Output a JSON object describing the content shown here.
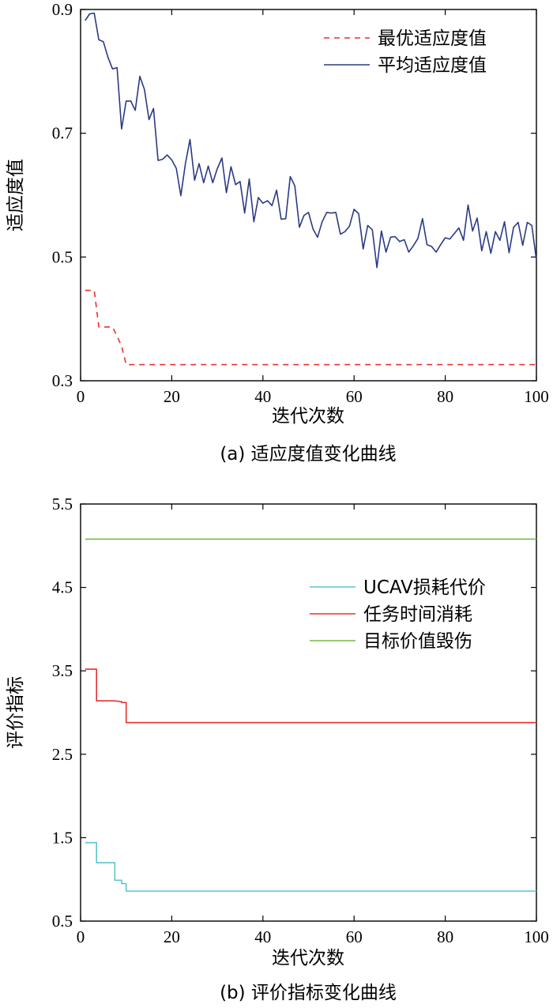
{
  "chart_data": [
    {
      "type": "line",
      "caption": "(a) 适应度值变化曲线",
      "xlabel": "迭代次数",
      "ylabel": "适应度值",
      "xlim": [
        0,
        100
      ],
      "ylim": [
        0.3,
        0.9
      ],
      "xticks": [
        0,
        20,
        40,
        60,
        80,
        100
      ],
      "yticks": [
        0.3,
        0.5,
        0.7,
        0.9
      ],
      "legend_position": "top-right",
      "grid": false,
      "series": [
        {
          "name": "最优适应度值",
          "color": "#e8312f",
          "style": "dashed",
          "x": [
            1,
            3,
            4,
            6,
            7,
            8,
            9,
            10,
            100
          ],
          "y": [
            0.446,
            0.446,
            0.387,
            0.387,
            0.387,
            0.372,
            0.356,
            0.326,
            0.326
          ]
        },
        {
          "name": "平均适应度值",
          "color": "#2b3a84",
          "style": "solid",
          "x": [
            1,
            2,
            3,
            4,
            5,
            6,
            7,
            8,
            9,
            10,
            11,
            12,
            13,
            14,
            15,
            16,
            17,
            18,
            19,
            20,
            21,
            22,
            23,
            24,
            25,
            26,
            27,
            28,
            29,
            30,
            31,
            32,
            33,
            34,
            35,
            36,
            37,
            38,
            39,
            40,
            41,
            42,
            43,
            44,
            45,
            46,
            47,
            48,
            49,
            50,
            51,
            52,
            53,
            54,
            55,
            56,
            57,
            58,
            59,
            60,
            61,
            62,
            63,
            64,
            65,
            66,
            67,
            68,
            69,
            70,
            71,
            72,
            73,
            74,
            75,
            76,
            77,
            78,
            79,
            80,
            81,
            82,
            83,
            84,
            85,
            86,
            87,
            88,
            89,
            90,
            91,
            92,
            93,
            94,
            95,
            96,
            97,
            98,
            99,
            100
          ],
          "y": [
            0.882,
            0.893,
            0.894,
            0.851,
            0.848,
            0.823,
            0.804,
            0.806,
            0.707,
            0.752,
            0.752,
            0.737,
            0.792,
            0.771,
            0.722,
            0.74,
            0.656,
            0.658,
            0.665,
            0.657,
            0.643,
            0.599,
            0.651,
            0.69,
            0.624,
            0.651,
            0.62,
            0.647,
            0.62,
            0.643,
            0.66,
            0.604,
            0.646,
            0.617,
            0.622,
            0.571,
            0.626,
            0.557,
            0.596,
            0.587,
            0.591,
            0.583,
            0.608,
            0.561,
            0.562,
            0.63,
            0.615,
            0.548,
            0.567,
            0.572,
            0.545,
            0.532,
            0.557,
            0.572,
            0.571,
            0.572,
            0.537,
            0.541,
            0.55,
            0.577,
            0.57,
            0.513,
            0.551,
            0.544,
            0.483,
            0.542,
            0.508,
            0.532,
            0.533,
            0.525,
            0.528,
            0.508,
            0.518,
            0.53,
            0.562,
            0.52,
            0.517,
            0.508,
            0.52,
            0.531,
            0.529,
            0.538,
            0.547,
            0.527,
            0.584,
            0.542,
            0.563,
            0.51,
            0.541,
            0.506,
            0.541,
            0.527,
            0.557,
            0.507,
            0.548,
            0.556,
            0.519,
            0.556,
            0.551,
            0.495
          ]
        }
      ]
    },
    {
      "type": "line",
      "caption": "(b) 评价指标变化曲线",
      "xlabel": "迭代次数",
      "ylabel": "评价指标",
      "xlim": [
        0,
        100
      ],
      "ylim": [
        0.5,
        5.5
      ],
      "xticks": [
        0,
        20,
        40,
        60,
        80,
        100
      ],
      "yticks": [
        0.5,
        1.5,
        2.5,
        3.5,
        4.5,
        5.5
      ],
      "legend_position": "top-right",
      "grid": false,
      "series": [
        {
          "name": "UCAV损耗代价",
          "color": "#5bc4cc",
          "style": "solid",
          "x": [
            1,
            3.5,
            3.5,
            7.5,
            7.5,
            9,
            9,
            10,
            10,
            100
          ],
          "y": [
            1.44,
            1.44,
            1.2,
            1.2,
            0.99,
            0.99,
            0.95,
            0.95,
            0.86,
            0.86
          ]
        },
        {
          "name": "任务时间消耗",
          "color": "#e8312f",
          "style": "solid",
          "x": [
            1,
            3.5,
            3.5,
            7.5,
            7.5,
            9,
            9,
            10,
            10,
            100
          ],
          "y": [
            3.52,
            3.52,
            3.14,
            3.14,
            3.14,
            3.13,
            3.12,
            3.12,
            2.88,
            2.88
          ]
        },
        {
          "name": "目标价值毁伤",
          "color": "#7ab648",
          "style": "solid",
          "x": [
            1,
            100
          ],
          "y": [
            5.08,
            5.08
          ]
        }
      ]
    }
  ]
}
